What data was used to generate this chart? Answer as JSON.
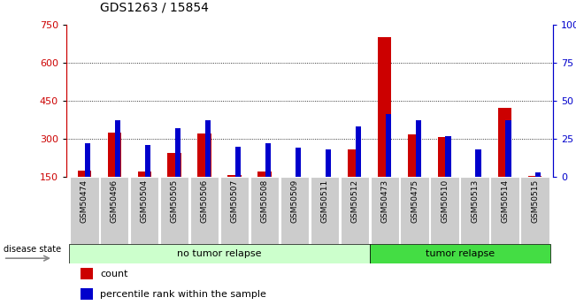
{
  "title": "GDS1263 / 15854",
  "samples": [
    "GSM50474",
    "GSM50496",
    "GSM50504",
    "GSM50505",
    "GSM50506",
    "GSM50507",
    "GSM50508",
    "GSM50509",
    "GSM50511",
    "GSM50512",
    "GSM50473",
    "GSM50475",
    "GSM50510",
    "GSM50513",
    "GSM50514",
    "GSM50515"
  ],
  "count_values": [
    175,
    325,
    172,
    245,
    320,
    158,
    170,
    152,
    148,
    258,
    700,
    318,
    308,
    148,
    420,
    153
  ],
  "percentile_values": [
    22,
    37,
    21,
    32,
    37,
    20,
    22,
    19,
    18,
    33,
    41,
    37,
    27,
    18,
    37,
    3
  ],
  "groups": [
    {
      "label": "no tumor relapse",
      "start": 0,
      "end": 10,
      "color": "#ccffcc"
    },
    {
      "label": "tumor relapse",
      "start": 10,
      "end": 16,
      "color": "#44dd44"
    }
  ],
  "ylim_left": [
    150,
    750
  ],
  "ylim_right": [
    0,
    100
  ],
  "yticks_left": [
    150,
    300,
    450,
    600,
    750
  ],
  "yticks_right": [
    0,
    25,
    50,
    75,
    100
  ],
  "count_color": "#cc0000",
  "percentile_color": "#0000cc",
  "background_color": "#ffffff",
  "disease_state_label": "disease state",
  "legend_count": "count",
  "legend_percentile": "percentile rank within the sample",
  "label_bg_color": "#cccccc"
}
